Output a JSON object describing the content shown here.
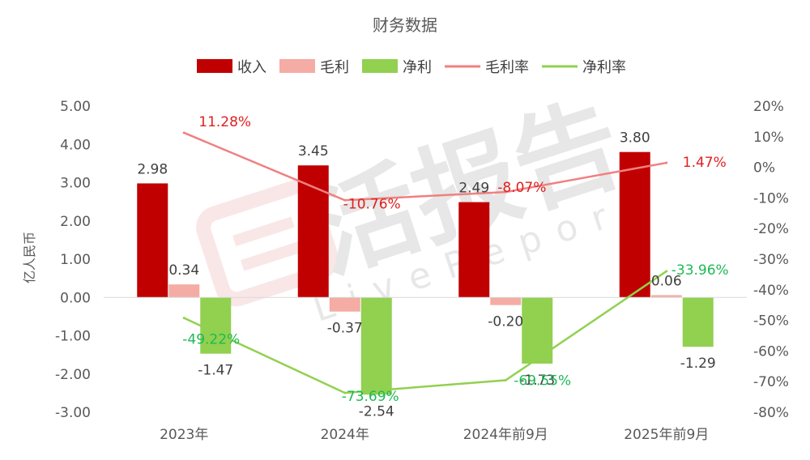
{
  "chart_data": {
    "type": "bar",
    "title": "财务数据",
    "ylabel": "亿人民币",
    "categories": [
      "2023年",
      "2024年",
      "2024年前9月",
      "2025年前9月"
    ],
    "ylim": [
      -3,
      5
    ],
    "y_ticks": [
      "5.00",
      "4.00",
      "3.00",
      "2.00",
      "1.00",
      "0.00",
      "-1.00",
      "-2.00",
      "-3.00"
    ],
    "y2lim": [
      -80,
      20
    ],
    "y2_ticks": [
      "20%",
      "10%",
      "0%",
      "-10%",
      "-20%",
      "-30%",
      "-40%",
      "-50%",
      "-60%",
      "-70%",
      "-80%"
    ],
    "grid": false,
    "legend_position": "top-center",
    "series": [
      {
        "name": "收入",
        "kind": "bar",
        "axis": "left",
        "color": "#c00000",
        "values": [
          2.98,
          3.45,
          2.49,
          3.8
        ],
        "labels": [
          "2.98",
          "3.45",
          "2.49",
          "3.80"
        ]
      },
      {
        "name": "毛利",
        "kind": "bar",
        "axis": "left",
        "color": "#f4aca4",
        "values": [
          0.34,
          -0.37,
          -0.2,
          0.06
        ],
        "labels": [
          "0.34",
          "-0.37",
          "-0.20",
          "0.06"
        ]
      },
      {
        "name": "净利",
        "kind": "bar",
        "axis": "left",
        "color": "#92d050",
        "values": [
          -1.47,
          -2.54,
          -1.73,
          -1.29
        ],
        "labels": [
          "-1.47",
          "-2.54",
          "-1.73",
          "-1.29"
        ]
      },
      {
        "name": "毛利率",
        "kind": "line",
        "axis": "right",
        "color": "#f08080",
        "label_color": "#e02020",
        "values": [
          11.28,
          -10.76,
          -8.07,
          1.47
        ],
        "labels": [
          "11.28%",
          "-10.76%",
          "-8.07%",
          "1.47%"
        ]
      },
      {
        "name": "净利率",
        "kind": "line",
        "axis": "right",
        "color": "#92d050",
        "label_color": "#1db954",
        "values": [
          -49.22,
          -73.69,
          -69.55,
          -33.96
        ],
        "labels": [
          "-49.22%",
          "-73.69%",
          "-69.55%",
          "-33.96%"
        ]
      }
    ]
  },
  "watermark": {
    "text": "活报告",
    "subtext": "LiveReport"
  }
}
